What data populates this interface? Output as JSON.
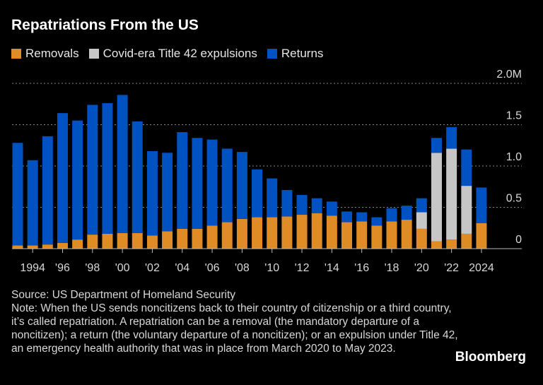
{
  "chart_data": {
    "type": "bar",
    "stacked": true,
    "title": "Repatriations From the US",
    "x": [
      1993,
      1994,
      1995,
      1996,
      1997,
      1998,
      1999,
      2000,
      2001,
      2002,
      2003,
      2004,
      2005,
      2006,
      2007,
      2008,
      2009,
      2010,
      2011,
      2012,
      2013,
      2014,
      2015,
      2016,
      2017,
      2018,
      2019,
      2020,
      2021,
      2022,
      2023,
      2024
    ],
    "x_tick_labels": [
      {
        "year": 1994,
        "label": "1994"
      },
      {
        "year": 1996,
        "label": "'96"
      },
      {
        "year": 1998,
        "label": "'98"
      },
      {
        "year": 2000,
        "label": "'00"
      },
      {
        "year": 2002,
        "label": "'02"
      },
      {
        "year": 2004,
        "label": "'04"
      },
      {
        "year": 2006,
        "label": "'06"
      },
      {
        "year": 2008,
        "label": "'08"
      },
      {
        "year": 2010,
        "label": "'10"
      },
      {
        "year": 2012,
        "label": "'12"
      },
      {
        "year": 2014,
        "label": "'14"
      },
      {
        "year": 2016,
        "label": "'16"
      },
      {
        "year": 2018,
        "label": "'18"
      },
      {
        "year": 2020,
        "label": "'20"
      },
      {
        "year": 2022,
        "label": "'22"
      },
      {
        "year": 2024,
        "label": "2024"
      }
    ],
    "y_ticks": [
      {
        "value": 0,
        "label": "0"
      },
      {
        "value": 0.5,
        "label": "0.5"
      },
      {
        "value": 1.0,
        "label": "1.0"
      },
      {
        "value": 1.5,
        "label": "1.5"
      },
      {
        "value": 2.0,
        "label": "2.0M"
      }
    ],
    "ylim": [
      0,
      2.0
    ],
    "y_unit": "millions",
    "y_axis_side": "right",
    "grid": true,
    "legend_position": "top-left",
    "series": [
      {
        "name": "Removals",
        "color": "#e08c26",
        "values": [
          0.04,
          0.04,
          0.05,
          0.07,
          0.11,
          0.17,
          0.18,
          0.19,
          0.19,
          0.16,
          0.21,
          0.24,
          0.24,
          0.28,
          0.32,
          0.36,
          0.38,
          0.38,
          0.39,
          0.41,
          0.43,
          0.4,
          0.32,
          0.33,
          0.28,
          0.33,
          0.35,
          0.24,
          0.09,
          0.11,
          0.18,
          0.31
        ]
      },
      {
        "name": "Covid-era Title 42 expulsions",
        "color": "#c6c6c6",
        "values": [
          0,
          0,
          0,
          0,
          0,
          0,
          0,
          0,
          0,
          0,
          0,
          0,
          0,
          0,
          0,
          0,
          0,
          0,
          0,
          0,
          0,
          0,
          0,
          0,
          0,
          0,
          0,
          0.2,
          1.07,
          1.1,
          0.58,
          0
        ]
      },
      {
        "name": "Returns",
        "color": "#0051c2",
        "values": [
          1.24,
          1.03,
          1.31,
          1.57,
          1.44,
          1.57,
          1.58,
          1.67,
          1.35,
          1.02,
          0.95,
          1.17,
          1.1,
          1.04,
          0.89,
          0.81,
          0.58,
          0.47,
          0.32,
          0.24,
          0.18,
          0.17,
          0.13,
          0.11,
          0.1,
          0.16,
          0.17,
          0.17,
          0.18,
          0.26,
          0.44,
          0.43
        ]
      }
    ]
  },
  "footer": {
    "source": "Source: US Department of Homeland Security",
    "note": "Note: When the US sends noncitizens back to their country of citizenship or a third country, it’s called repatriation. A repatriation can be a removal (the mandatory departure of a noncitizen); a return (the voluntary departure of a noncitizen); or an expulsion under Title 42, an emergency health authority that was in place from March 2020 to May 2023.",
    "brand": "Bloomberg"
  }
}
